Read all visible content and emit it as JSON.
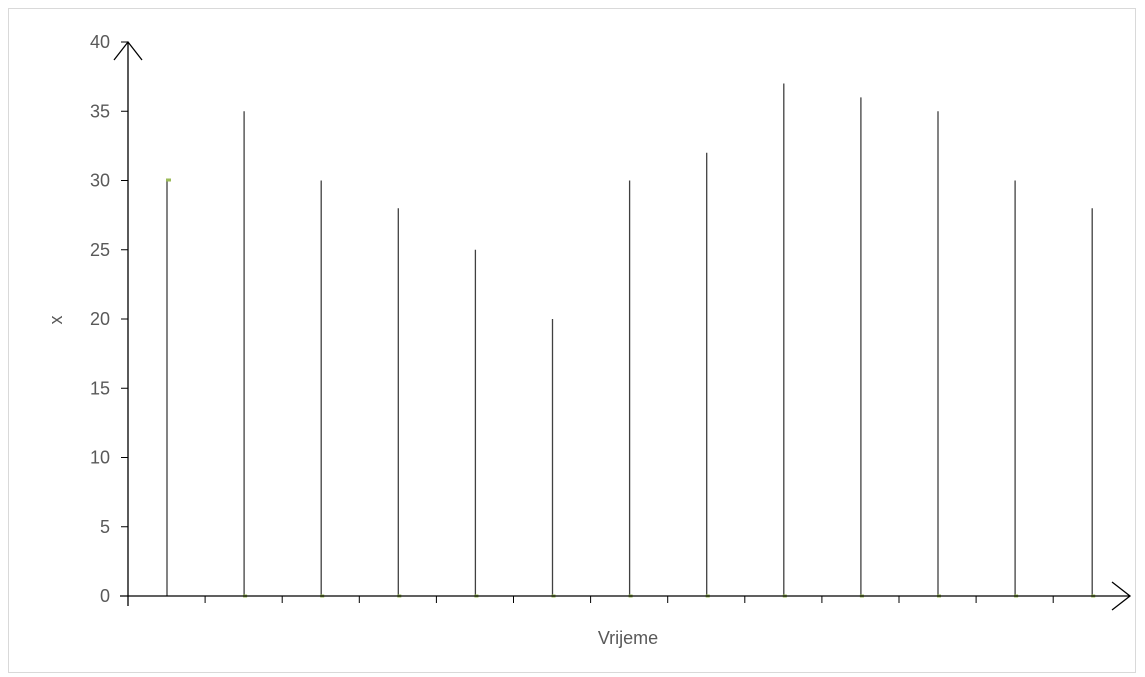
{
  "chart_data": {
    "type": "stem",
    "title": "",
    "xlabel": "Vrijeme",
    "ylabel": "x",
    "ylim": [
      0,
      40
    ],
    "yticks": [
      0,
      5,
      10,
      15,
      20,
      25,
      30,
      35,
      40
    ],
    "x": [
      1,
      2,
      3,
      4,
      5,
      6,
      7,
      8,
      9,
      10,
      11,
      12,
      13
    ],
    "values": [
      30,
      35,
      30,
      28,
      25,
      20,
      30,
      32,
      37,
      36,
      35,
      30,
      28
    ],
    "markers_at_zero": [
      2,
      3,
      4,
      5,
      6,
      7,
      8,
      9,
      10,
      11,
      12,
      13
    ],
    "x_tick_count": 13,
    "grid": false,
    "axes_with_arrows": true,
    "colors": {
      "stem": "#404040",
      "marker": "#9bbb59",
      "axis": "#000000",
      "text": "#595959",
      "border": "#d9d9d9"
    }
  }
}
